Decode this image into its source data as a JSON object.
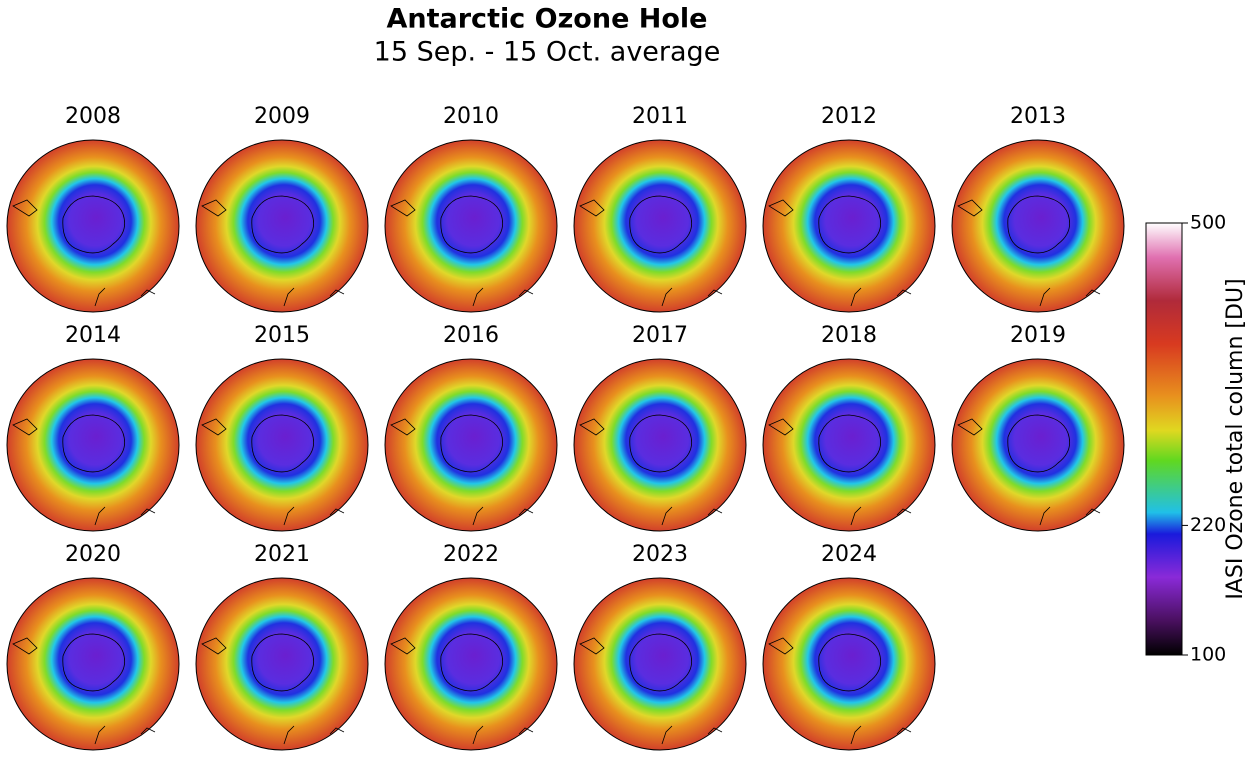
{
  "title": "Antarctic Ozone Hole",
  "subtitle": "15 Sep. - 15 Oct. average",
  "panels": [
    {
      "year": "2008"
    },
    {
      "year": "2009"
    },
    {
      "year": "2010"
    },
    {
      "year": "2011"
    },
    {
      "year": "2012"
    },
    {
      "year": "2013"
    },
    {
      "year": "2014"
    },
    {
      "year": "2015"
    },
    {
      "year": "2016"
    },
    {
      "year": "2017"
    },
    {
      "year": "2018"
    },
    {
      "year": "2019"
    },
    {
      "year": "2020"
    },
    {
      "year": "2021"
    },
    {
      "year": "2022"
    },
    {
      "year": "2023"
    },
    {
      "year": "2024"
    }
  ],
  "colorbar": {
    "label": "IASI Ozone total column [DU]",
    "lim": [
      100,
      500
    ],
    "ticks": [
      100,
      220,
      500
    ]
  }
}
